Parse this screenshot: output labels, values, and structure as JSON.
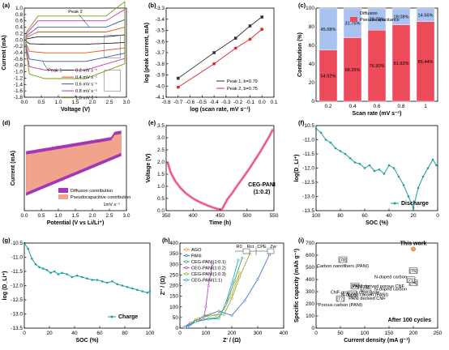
{
  "chart_data": [
    {
      "panel": "(a)",
      "type": "line",
      "xlabel": "Voltage (V)",
      "ylabel": "Current (mA)",
      "xlim": [
        0,
        3.0
      ],
      "ylim": [
        -1.8,
        1.0
      ],
      "xticks": [
        "0.0",
        "0.5",
        "1.0",
        "1.5",
        "2.0",
        "2.5",
        "3.0"
      ],
      "yticks": [
        "-1.8",
        "-1.6",
        "-1.4",
        "-1.2",
        "-1.0",
        "-0.8",
        "-0.6",
        "-0.4",
        "-0.2",
        "0.0",
        "0.2",
        "0.4",
        "0.6",
        "0.8",
        "1.0"
      ],
      "annotations": [
        "Peak 1",
        "Peak 2"
      ],
      "series": [
        {
          "name": "0.2 mV s⁻¹",
          "color": "#222222",
          "upper": 0.1,
          "lower": -0.15
        },
        {
          "name": "0.4 mV s⁻¹",
          "color": "#e0521a",
          "upper": 0.25,
          "lower": -0.45
        },
        {
          "name": "0.6 mV s⁻¹",
          "color": "#3a56c9",
          "upper": 0.4,
          "lower": -0.75
        },
        {
          "name": "0.8 mV s⁻¹",
          "color": "#cc3399",
          "upper": 0.6,
          "lower": -1.05
        },
        {
          "name": "1.0 mV s⁻¹",
          "color": "#7a9a1a",
          "upper": 0.75,
          "lower": -1.35
        }
      ]
    },
    {
      "panel": "(b)",
      "type": "scatter",
      "xlabel": "log (scan rate, mV s⁻¹)",
      "ylabel": "log (peak current, mA)",
      "xlim": [
        -0.8,
        0.1
      ],
      "ylim": [
        -4.1,
        -3.3
      ],
      "xticks": [
        "-0.8",
        "-0.7",
        "-0.6",
        "-0.5",
        "-0.4",
        "-0.3",
        "-0.2",
        "-0.1",
        "0.0",
        "0.1"
      ],
      "yticks": [
        "-4.1",
        "-4.0",
        "-3.9",
        "-3.8",
        "-3.7",
        "-3.6",
        "-3.5",
        "-3.4",
        "-3.3"
      ],
      "series": [
        {
          "name": "Peak 1, b=0.79",
          "color": "#333333",
          "x": [
            -0.7,
            -0.4,
            -0.22,
            -0.1,
            0.0
          ],
          "y": [
            -3.93,
            -3.7,
            -3.57,
            -3.46,
            -3.38
          ]
        },
        {
          "name": "Peak 2, b=0.75",
          "color": "#d9262b",
          "x": [
            -0.7,
            -0.4,
            -0.22,
            -0.1,
            0.0
          ],
          "y": [
            -4.01,
            -3.8,
            -3.66,
            -3.58,
            -3.49
          ]
        }
      ]
    },
    {
      "panel": "(c)",
      "type": "bar",
      "stacked": true,
      "xlabel": "Scan rate (mV s⁻¹)",
      "ylabel": "Contribution (%)",
      "ylim": [
        0,
        100
      ],
      "yticks": [
        "0",
        "20",
        "40",
        "60",
        "80",
        "100"
      ],
      "categories": [
        "0.2",
        "0.4",
        "0.6",
        "0.8",
        "1"
      ],
      "series": [
        {
          "name": "Pseudocapacitance",
          "color": "#ee4b5a",
          "values": [
            54.92,
            68.25,
            76.3,
            81.92,
            85.44
          ],
          "labels": [
            "54.92%",
            "68.25%",
            "76.30%",
            "81.92%",
            "85.44%"
          ]
        },
        {
          "name": "Diffusion",
          "color": "#a9c2ef",
          "values": [
            45.08,
            31.75,
            23.7,
            18.08,
            14.56
          ],
          "labels": [
            "45.08%",
            "31.75%",
            "23.70%",
            "18.08%",
            "14.56%"
          ]
        }
      ]
    },
    {
      "panel": "(d)",
      "type": "area",
      "xlabel": "Potential (V vs Li/Li⁺)",
      "ylabel": "Current (mA)",
      "xlim": [
        0,
        3.0
      ],
      "ylim": [
        -1.2,
        0.6
      ],
      "xticks": [
        "0.0",
        "0.5",
        "1.0",
        "1.5",
        "2.0",
        "2.5",
        "3.0"
      ],
      "annotation": "1mV s⁻¹",
      "series": [
        {
          "name": "Diffusion contribution",
          "color": "#a238b8"
        },
        {
          "name": "Pseudocapacitive contribution",
          "color": "#f1a48c"
        }
      ]
    },
    {
      "panel": "(e)",
      "type": "line",
      "xlabel": "Time (h)",
      "ylabel": "Voltage (V)",
      "xlim": [
        340,
        570
      ],
      "ylim": [
        0,
        3.5
      ],
      "xticks": [
        "350",
        "400",
        "450",
        "500",
        "550"
      ],
      "yticks": [
        "0.0",
        "0.5",
        "1.0",
        "1.5",
        "2.0",
        "2.5",
        "3.0",
        "3.5"
      ],
      "series": [
        {
          "name": "CEG-PANI (1:0.2)",
          "color": "#e8347b",
          "line1": "CEG-PANI",
          "line2": "(1:0.2)",
          "x": [
            343,
            350,
            360,
            370,
            380,
            390,
            400,
            410,
            420,
            430,
            440,
            450,
            458,
            462,
            470,
            480,
            490,
            500,
            510,
            520,
            530,
            540,
            550,
            560,
            568
          ],
          "y": [
            2.0,
            1.55,
            1.2,
            0.95,
            0.75,
            0.6,
            0.47,
            0.37,
            0.28,
            0.2,
            0.13,
            0.07,
            0.03,
            0.15,
            0.45,
            0.7,
            0.98,
            1.25,
            1.52,
            1.8,
            2.1,
            2.4,
            2.72,
            3.05,
            3.35
          ]
        }
      ]
    },
    {
      "panel": "(f)",
      "type": "line",
      "xlabel": "SOC (%)",
      "ylabel": "log(D_Li⁺)",
      "xlim": [
        100,
        0
      ],
      "ylim": [
        -13.5,
        -10.5
      ],
      "xticks": [
        "100",
        "80",
        "60",
        "40",
        "20",
        "0"
      ],
      "yticks": [
        "-13.5",
        "-13.0",
        "-12.5",
        "-12.0",
        "-11.5",
        "-11.0",
        "-10.5"
      ],
      "series": [
        {
          "name": "Discharge",
          "color": "#1f9e9b",
          "x": [
            100,
            96,
            92,
            88,
            84,
            80,
            76,
            72,
            68,
            64,
            60,
            56,
            52,
            48,
            44,
            40,
            36,
            32,
            28,
            24,
            20,
            16,
            12,
            8,
            4,
            1
          ],
          "y": [
            -10.6,
            -10.75,
            -11.0,
            -11.1,
            -11.3,
            -11.4,
            -11.5,
            -11.65,
            -11.8,
            -11.85,
            -12.0,
            -11.9,
            -12.1,
            -12.05,
            -12.2,
            -11.9,
            -12.0,
            -12.3,
            -12.6,
            -13.0,
            -13.4,
            -12.7,
            -12.3,
            -12.0,
            -11.7,
            -11.9
          ]
        }
      ]
    },
    {
      "panel": "(g)",
      "type": "line",
      "xlabel": "SOC (%)",
      "ylabel": "log (D_Li⁺)",
      "xlim": [
        0,
        100
      ],
      "ylim": [
        -13.5,
        -10.5
      ],
      "xticks": [
        "0",
        "20",
        "40",
        "60",
        "80",
        "100"
      ],
      "yticks": [
        "-13.5",
        "-13.0",
        "-12.5",
        "-12.0",
        "-11.5",
        "-11.0",
        "-10.5"
      ],
      "series": [
        {
          "name": "Charge",
          "color": "#1f9e9b",
          "x": [
            0,
            3,
            6,
            9,
            12,
            15,
            18,
            21,
            24,
            27,
            30,
            34,
            38,
            42,
            46,
            50,
            54,
            58,
            62,
            66,
            70,
            74,
            78,
            82,
            86,
            90,
            94,
            98,
            100
          ],
          "y": [
            -10.5,
            -10.7,
            -11.05,
            -11.25,
            -11.35,
            -11.4,
            -11.45,
            -11.55,
            -11.5,
            -11.6,
            -11.55,
            -11.6,
            -11.7,
            -11.65,
            -11.7,
            -11.75,
            -11.8,
            -11.8,
            -11.85,
            -11.9,
            -11.85,
            -11.95,
            -12.0,
            -12.05,
            -12.1,
            -12.15,
            -12.2,
            -12.25,
            -12.2
          ]
        }
      ]
    },
    {
      "panel": "(h)",
      "type": "scatter",
      "xlabel": "Z' / (Ω)",
      "ylabel": "Z'' / (Ω)",
      "xlim": [
        0,
        400
      ],
      "ylim": [
        0,
        400
      ],
      "xticks": [
        "0",
        "100",
        "200",
        "300",
        "400"
      ],
      "yticks": [
        "0",
        "50",
        "100",
        "150",
        "200",
        "250",
        "300",
        "350",
        "400"
      ],
      "series": [
        {
          "name": "AGO",
          "color": "#e39a2a",
          "x": [
            20,
            60,
            100,
            140,
            170,
            200,
            230
          ],
          "y": [
            5,
            40,
            60,
            60,
            90,
            160,
            260
          ]
        },
        {
          "name": "PANI",
          "color": "#3e7bd1",
          "x": [
            30,
            90,
            150,
            200,
            250,
            300,
            345
          ],
          "y": [
            5,
            55,
            80,
            60,
            130,
            230,
            345
          ]
        },
        {
          "name": "CEG-PANI(1:0.1)",
          "color": "#38a860",
          "x": [
            20,
            60,
            110,
            150,
            180,
            210,
            240
          ],
          "y": [
            5,
            35,
            45,
            50,
            120,
            220,
            330
          ]
        },
        {
          "name": "CEG-PANI(1:0.2)",
          "color": "#b84cc9",
          "x": [
            15,
            40,
            70,
            90,
            100,
            110,
            125
          ],
          "y": [
            5,
            25,
            35,
            40,
            100,
            200,
            300
          ]
        },
        {
          "name": "CEG-PANI(1:0.3)",
          "color": "#89b13a",
          "x": [
            20,
            70,
            120,
            170,
            200,
            230,
            270
          ],
          "y": [
            5,
            45,
            60,
            65,
            140,
            240,
            350
          ]
        },
        {
          "name": "CEG-PANI(1:1)",
          "color": "#29a9c9",
          "x": [
            20,
            60,
            110,
            150,
            175,
            200,
            225
          ],
          "y": [
            5,
            30,
            42,
            45,
            110,
            210,
            320
          ]
        }
      ],
      "circuit": {
        "labels": [
          "R0",
          "Rct",
          "CPE",
          "Zw"
        ]
      }
    },
    {
      "panel": "(i)",
      "type": "scatter",
      "xlabel": "Current density (mA g⁻¹)",
      "ylabel": "Specific capacity (mAh g⁻¹)",
      "xlim": [
        0,
        250
      ],
      "ylim": [
        0,
        700
      ],
      "xticks": [
        "0",
        "50",
        "100",
        "150",
        "200",
        "250"
      ],
      "yticks": [
        "0",
        "100",
        "200",
        "300",
        "400",
        "500",
        "600",
        "700"
      ],
      "annotation": "After 100 cycles",
      "points": [
        {
          "label": "This work",
          "x": 200,
          "y": 650,
          "color": "#f0a060"
        },
        {
          "label": "[78]",
          "x": 55,
          "y": 560,
          "color": "#ffffff",
          "sub": "Carbon nanofibers (PANI)"
        },
        {
          "label": "[75]",
          "x": 80,
          "y": 345,
          "color": "#ffffff",
          "sub": "CNF-graphite composite"
        },
        {
          "label": "[77]",
          "x": 50,
          "y": 240,
          "color": "#ffffff",
          "sub": "Porous carbon (PANI)"
        },
        {
          "label": "[79]",
          "x": 75,
          "y": 280,
          "color": "#ffffff"
        },
        {
          "label": "[72]",
          "x": 100,
          "y": 325,
          "color": "#ffffff",
          "sub": "N-doped carbon (PANI)"
        },
        {
          "label": "[80]",
          "x": 105,
          "y": 295,
          "color": "#ffffff",
          "sub": "PANI derived CNF"
        },
        {
          "label": "[76]",
          "x": 200,
          "y": 470,
          "color": "#ffffff",
          "sub": "N-doped carbon"
        },
        {
          "label": "[74]",
          "x": 200,
          "y": 370,
          "color": "#ffffff",
          "sub": "N-doped carbon"
        },
        {
          "label": "[71]",
          "x": 195,
          "y": 395,
          "color": "#ffffff",
          "sub": "PANI derived porous CNF"
        }
      ]
    }
  ]
}
